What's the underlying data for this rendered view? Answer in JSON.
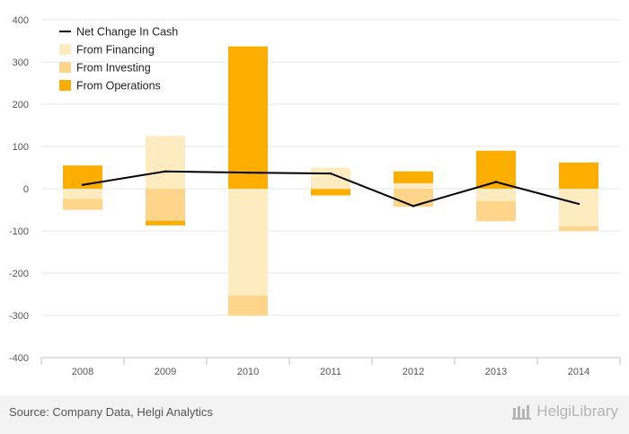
{
  "chart_data": {
    "type": "bar",
    "stacked": true,
    "categories": [
      "2008",
      "2009",
      "2010",
      "2011",
      "2012",
      "2013",
      "2014"
    ],
    "series": [
      {
        "name": "Net Change In Cash",
        "kind": "line",
        "color": "#000000",
        "values": [
          9,
          41,
          38,
          36,
          -41,
          16,
          -36
        ]
      },
      {
        "name": "From Financing",
        "kind": "bar",
        "color": "#ffebc0",
        "values": [
          -24,
          125,
          -253,
          50,
          13,
          -29,
          -89
        ]
      },
      {
        "name": "From Investing",
        "kind": "bar",
        "color": "#fed58b",
        "values": [
          -26,
          -76,
          -48,
          -1,
          -43,
          -48,
          -11
        ]
      },
      {
        "name": "From Operations",
        "kind": "bar",
        "color": "#fbae00",
        "values": [
          55,
          -11,
          337,
          -15,
          28,
          90,
          62
        ]
      }
    ],
    "ylim": [
      -400,
      400
    ],
    "yticks": [
      -400,
      -300,
      -200,
      -100,
      0,
      100,
      200,
      300,
      400
    ],
    "grid": true,
    "legend_position": "top-left"
  },
  "legend": {
    "items": [
      "Net Change In Cash",
      "From Financing",
      "From Investing",
      "From Operations"
    ]
  },
  "footer": {
    "source": "Source: Company Data, Helgi Analytics",
    "brand": "HelgiLibrary"
  }
}
